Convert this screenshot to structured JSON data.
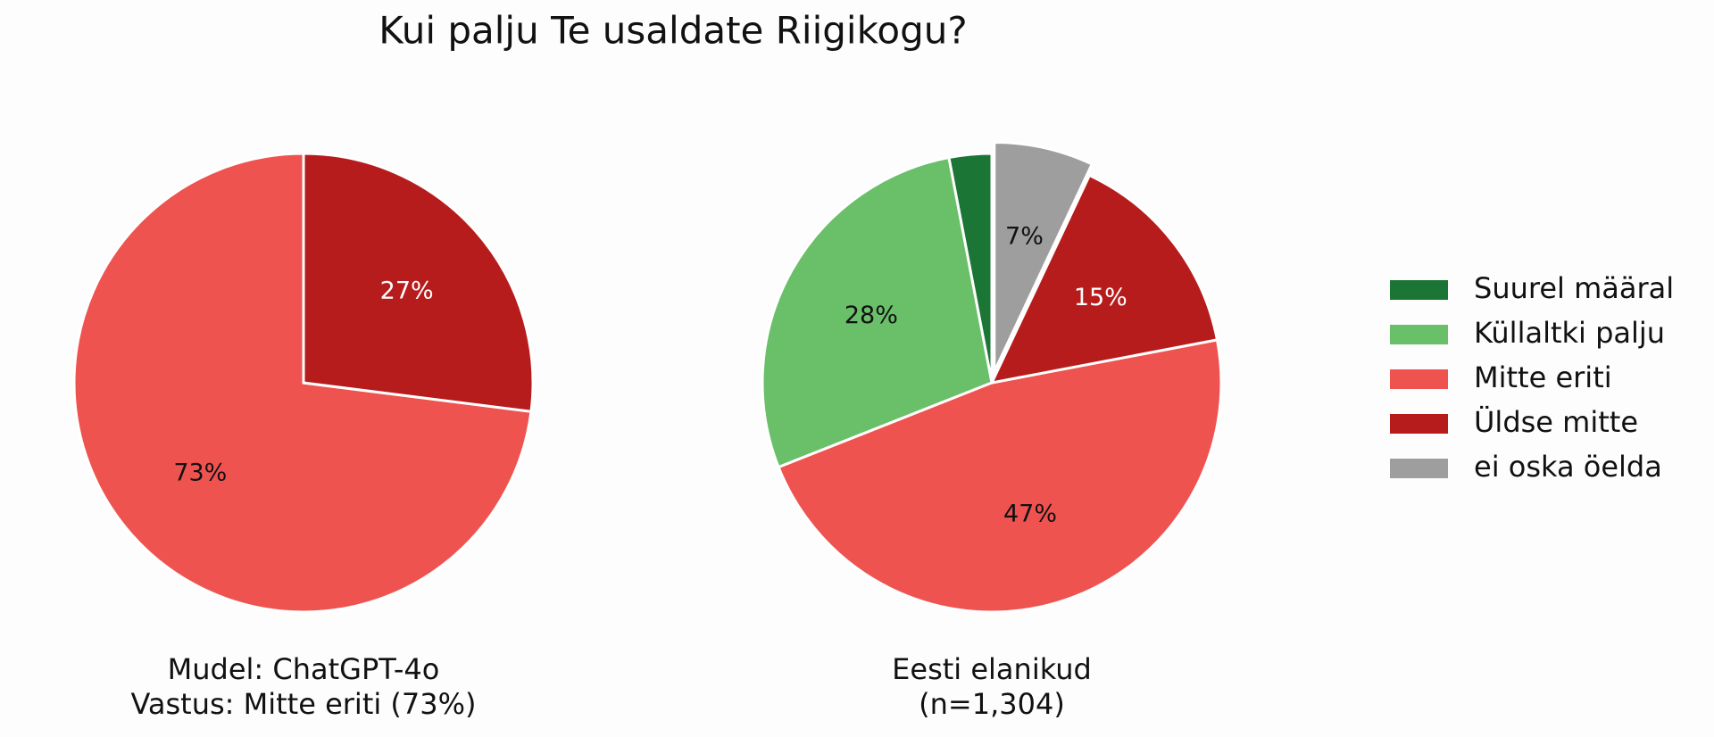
{
  "title": "Kui palju Te usaldate Riigikogu?",
  "chart_data": [
    {
      "type": "pie",
      "caption": [
        "Mudel: ChatGPT-4o",
        "Vastus: Mitte eriti (73%)"
      ],
      "categories": [
        "Mitte eriti",
        "Üldse mitte"
      ],
      "values": [
        73,
        27
      ],
      "value_labels": [
        "73%",
        "27%"
      ],
      "colors": [
        "#ef5350",
        "#b71c1c"
      ],
      "explode": [
        0,
        0
      ]
    },
    {
      "type": "pie",
      "caption": [
        "Eesti elanikud",
        "(n=1,304)"
      ],
      "categories": [
        "Suurel määral",
        "Küllaltki palju",
        "Mitte eriti",
        "Üldse mitte",
        "ei oska öelda"
      ],
      "values": [
        3,
        28,
        47,
        15,
        7
      ],
      "value_labels": [
        null,
        "28%",
        "47%",
        "15%",
        "7%"
      ],
      "colors": [
        "#1b7535",
        "#6abf69",
        "#ef5350",
        "#b71c1c",
        "#9e9e9e"
      ],
      "explode": [
        0,
        0,
        0,
        0,
        0.05
      ],
      "legend": "right"
    }
  ]
}
